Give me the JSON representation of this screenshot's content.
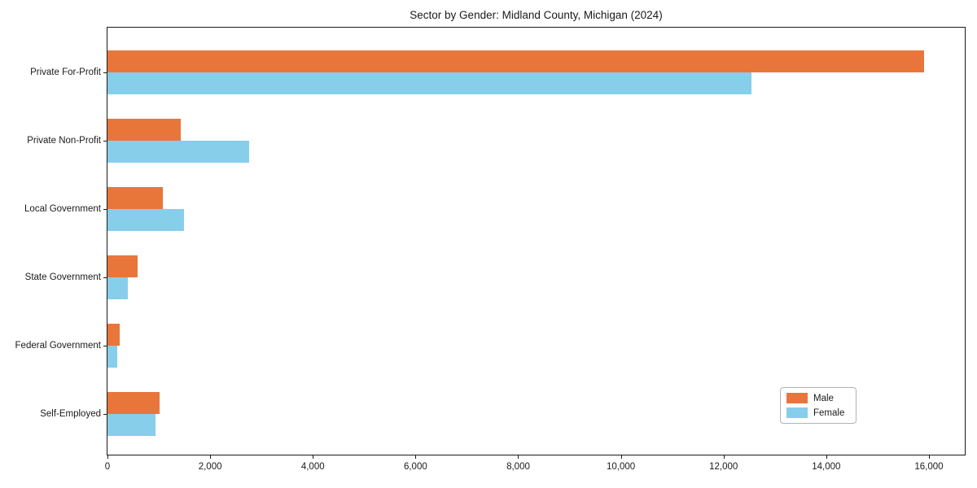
{
  "chart_data": {
    "type": "bar",
    "orientation": "horizontal",
    "title": "Sector by Gender: Midland County, Michigan (2024)",
    "categories": [
      "Private For-Profit",
      "Private Non-Profit",
      "Local Government",
      "State Government",
      "Federal Government",
      "Self-Employed"
    ],
    "series": [
      {
        "name": "Male",
        "color": "#e8763b",
        "values": [
          15900,
          1430,
          1080,
          590,
          240,
          1020
        ]
      },
      {
        "name": "Female",
        "color": "#87ceeb",
        "values": [
          12550,
          2760,
          1490,
          400,
          190,
          940
        ]
      }
    ],
    "xlabel": "",
    "ylabel": "",
    "xlim": [
      0,
      16730
    ],
    "xticks": {
      "values": [
        0,
        2000,
        4000,
        6000,
        8000,
        10000,
        12000,
        14000,
        16000
      ],
      "labels": [
        "0",
        "2,000",
        "4,000",
        "6,000",
        "8,000",
        "10,000",
        "12,000",
        "14,000",
        "16,000"
      ]
    },
    "grid": false,
    "legend": {
      "position": "lower right",
      "entries": [
        "Male",
        "Female"
      ]
    }
  }
}
